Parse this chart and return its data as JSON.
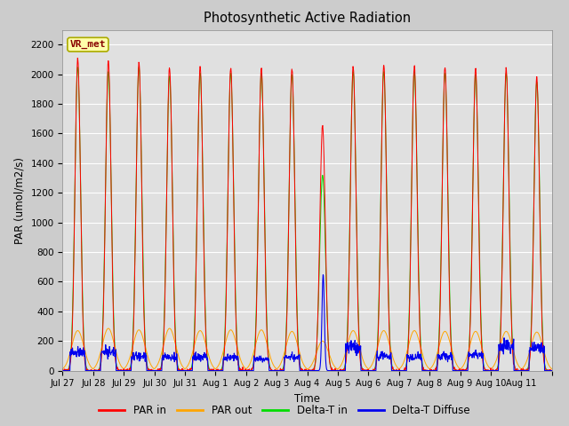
{
  "title": "Photosynthetic Active Radiation",
  "ylabel": "PAR (umol/m2/s)",
  "xlabel": "Time",
  "ylim": [
    0,
    2300
  ],
  "legend_label": "VR_met",
  "series": {
    "PAR_in": {
      "color": "#ff0000",
      "label": "PAR in"
    },
    "PAR_out": {
      "color": "#ffa500",
      "label": "PAR out"
    },
    "Delta_T_in": {
      "color": "#00dd00",
      "label": "Delta-T in"
    },
    "Delta_T_Diffuse": {
      "color": "#0000ee",
      "label": "Delta-T Diffuse"
    }
  },
  "x_tick_labels": [
    "Jul 27",
    "Jul 28",
    "Jul 29",
    "Jul 30",
    "Jul 31",
    "Aug 1",
    "Aug 2",
    "Aug 3",
    "Aug 4",
    "Aug 5",
    "Aug 6",
    "Aug 7",
    "Aug 8",
    "Aug 9",
    "Aug 10",
    "Aug 11"
  ],
  "yticks": [
    0,
    200,
    400,
    600,
    800,
    1000,
    1200,
    1400,
    1600,
    1800,
    2000,
    2200
  ],
  "n_days": 16,
  "pts_per_day": 96,
  "par_in_peaks": [
    2100,
    2090,
    2080,
    2050,
    2050,
    2040,
    2040,
    2040,
    1650,
    2050,
    2060,
    2060,
    2050,
    2040,
    2040,
    1980
  ],
  "par_out_peaks": [
    270,
    285,
    275,
    285,
    270,
    275,
    275,
    265,
    200,
    270,
    270,
    270,
    265,
    265,
    265,
    260
  ],
  "delta_t_in_peaks": [
    2050,
    2020,
    2050,
    1990,
    2010,
    2010,
    2010,
    2000,
    1320,
    2020,
    2020,
    2020,
    2010,
    2000,
    2010,
    1950
  ],
  "delta_t_diffuse_flat": [
    120,
    130,
    100,
    90,
    90,
    85,
    80,
    90,
    0,
    160,
    100,
    95,
    100,
    105,
    165,
    160
  ],
  "delta_t_diffuse_spike_day": 8,
  "delta_t_diffuse_spike_peak": 650,
  "background_color": "#cccccc",
  "plot_bg_color": "#e0e0e0",
  "grid_color": "#ffffff",
  "vr_met_facecolor": "#ffffaa",
  "vr_met_edgecolor": "#aaaa00",
  "vr_met_textcolor": "#880000"
}
